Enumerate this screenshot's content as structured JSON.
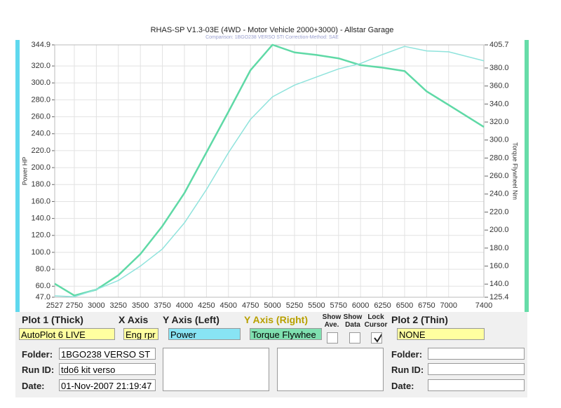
{
  "chart_data": {
    "type": "line",
    "title": "RHAS-SP V1.3-03E  (4WD - Motor Vehicle 2000+3000) - Allstar Garage",
    "subtitle": "Comparison: 1BGO238 VERSO STI     Correction-Method: SAE",
    "y_label": "Power HP",
    "y2_label": "Torque Flywheel Nm",
    "x": [
      2527,
      2750,
      3000,
      3250,
      3500,
      3750,
      4000,
      4250,
      4500,
      4750,
      5000,
      5250,
      5500,
      5750,
      6000,
      6250,
      6500,
      6750,
      7000,
      7400
    ],
    "series": [
      {
        "name": "Power",
        "color": "#5fd9a6",
        "width": 2.5,
        "values": [
          63,
          49,
          56,
          73,
          98,
          131,
          170,
          218,
          266,
          315,
          345,
          336,
          333,
          329,
          321,
          318,
          314,
          290,
          274,
          248
        ]
      },
      {
        "name": "Torque Flywheel",
        "color": "#8fe3dc",
        "width": 1.5,
        "axis": "y2",
        "values": [
          127,
          126,
          134,
          144,
          160,
          179,
          208,
          245,
          286,
          323,
          348,
          361,
          370,
          379,
          385,
          395,
          404,
          399,
          398,
          388
        ]
      }
    ],
    "xlim": [
      2527,
      7400
    ],
    "xticks": [
      2527,
      2750,
      3000,
      3250,
      3500,
      3750,
      4000,
      4250,
      4500,
      4750,
      5000,
      5250,
      5500,
      5750,
      6000,
      6250,
      6500,
      6750,
      7000,
      7400
    ],
    "ylim": [
      47,
      344.9
    ],
    "yticks": [
      {
        "value": 47,
        "label": "47.0"
      },
      {
        "value": 60,
        "label": "60.0"
      },
      {
        "value": 80,
        "label": "80.0"
      },
      {
        "value": 100,
        "label": "100.0"
      },
      {
        "value": 120,
        "label": "120.0"
      },
      {
        "value": 140,
        "label": "140.0"
      },
      {
        "value": 160,
        "label": "160.0"
      },
      {
        "value": 180,
        "label": "180.0"
      },
      {
        "value": 200,
        "label": "200.0"
      },
      {
        "value": 220,
        "label": "220.0"
      },
      {
        "value": 240,
        "label": "240.0"
      },
      {
        "value": 260,
        "label": "260.0"
      },
      {
        "value": 280,
        "label": "280.0"
      },
      {
        "value": 300,
        "label": "300.0"
      },
      {
        "value": 320,
        "label": "320.0"
      },
      344.9
    ],
    "y2lim": [
      125.4,
      405.7
    ],
    "y2ticks": [
      125.4,
      {
        "value": 140,
        "label": "140.0"
      },
      {
        "value": 160,
        "label": "160.0"
      },
      {
        "value": 180,
        "label": "180.0"
      },
      {
        "value": 200,
        "label": "200.0"
      },
      {
        "value": 220,
        "label": "220.0"
      },
      {
        "value": 240,
        "label": "240.0"
      },
      {
        "value": 260,
        "label": "260.0"
      },
      {
        "value": 280,
        "label": "280.0"
      },
      {
        "value": 300,
        "label": "300.0"
      },
      {
        "value": 320,
        "label": "320.0"
      },
      {
        "value": 340,
        "label": "340.0"
      },
      {
        "value": 360,
        "label": "360.0"
      },
      {
        "value": 380,
        "label": "380.0"
      },
      405.7
    ],
    "grid": true
  },
  "panel": {
    "plot1": {
      "label": "Plot 1 (Thick)",
      "value": "AutoPlot 6 LIVE"
    },
    "x_axis": {
      "label": "X Axis",
      "value": "Eng rpr"
    },
    "y_left": {
      "label": "Y Axis (Left)",
      "value": "Power"
    },
    "y_right": {
      "label": "Y Axis (Right)",
      "value": "Torque Flywhee"
    },
    "show_ave": "Show Ave.",
    "show_data": "Show Data",
    "lock_cursor": "Lock Cursor",
    "lock_cursor_checked": true,
    "plot2": {
      "label": "Plot 2 (Thin)",
      "value": "NONE"
    },
    "left_info": {
      "folder_label": "Folder:",
      "folder": "1BGO238 VERSO ST",
      "run_label": "Run ID:",
      "run": "tdo6 kit verso",
      "date_label": "Date:",
      "date": "01-Nov-2007  21:19:47"
    },
    "right_info": {
      "folder_label": "Folder:",
      "run_label": "Run ID:",
      "date_label": "Date:"
    }
  }
}
